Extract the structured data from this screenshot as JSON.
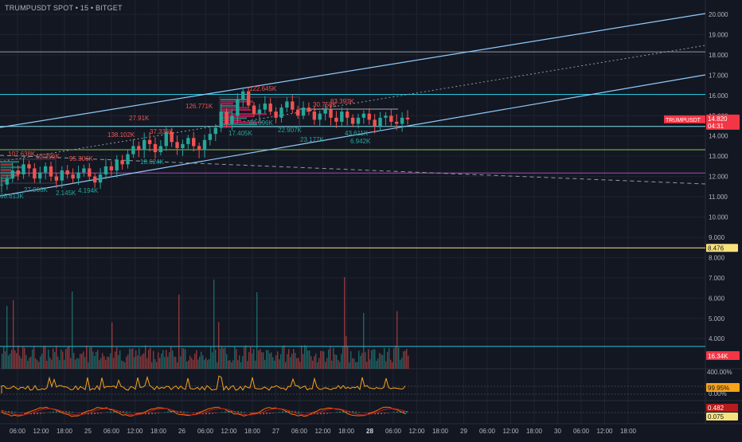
{
  "header": {
    "symbol": "TRUMPUSDT SPOT",
    "sep1": "•",
    "interval": "15",
    "sep2": "•",
    "exchange": "BITGET"
  },
  "price_axis": {
    "ticks": [
      "20.000",
      "19.000",
      "18.000",
      "17.000",
      "16.000",
      "15.000",
      "14.000",
      "13.000",
      "12.000",
      "11.000",
      "10.000",
      "9.000",
      "8.000",
      "7.000",
      "6.000",
      "5.000",
      "4.000"
    ],
    "last_price_tag": {
      "label": "TRUMPUSDT",
      "value": "14.820",
      "countdown": "04:31",
      "color": "#f23645"
    },
    "line_tag": {
      "value": "8.476",
      "color": "#f7e27c"
    }
  },
  "volume_panel": {
    "tag": "16.34K",
    "tag_color": "#f23645"
  },
  "oscillator_panel": {
    "ticks": [
      "400.00%",
      "0.00%"
    ],
    "tag": "99.95%",
    "tag_color": "#f7a21b"
  },
  "macd_panel": {
    "tag1": "0.482",
    "tag1_color": "#b71c1c",
    "tag2": "0.075",
    "tag2_color": "#f7e27c"
  },
  "time_axis": {
    "labels": [
      "06:00",
      "12:00",
      "18:00",
      "25",
      "06:00",
      "12:00",
      "18:00",
      "26",
      "06:00",
      "12:00",
      "18:00",
      "27",
      "06:00",
      "12:00",
      "18:00",
      "28",
      "06:00",
      "12:00",
      "18:00",
      "29",
      "06:00",
      "12:00",
      "18:00",
      "30",
      "06:00",
      "12:00",
      "18:00"
    ],
    "bold_label": "28"
  },
  "annotations": [
    {
      "text": "122.645K",
      "color": "#ef5350"
    },
    {
      "text": "126.771K",
      "color": "#ef5350"
    },
    {
      "text": "83.393K",
      "color": "#ef5350"
    },
    {
      "text": "30.758K",
      "color": "#ef5350"
    },
    {
      "text": "27.91K",
      "color": "#ef5350"
    },
    {
      "text": "138.102K",
      "color": "#ef5350"
    },
    {
      "text": "37.336K",
      "color": "#ef5350"
    },
    {
      "text": "107.638K",
      "color": "#ef5350"
    },
    {
      "text": "13.396K",
      "color": "#ef5350"
    },
    {
      "text": "95.306K",
      "color": "#ef5350"
    },
    {
      "text": "17.405K",
      "color": "#26a69a"
    },
    {
      "text": "86.096K",
      "color": "#26a69a"
    },
    {
      "text": "22.907K",
      "color": "#26a69a"
    },
    {
      "text": "43.611K",
      "color": "#26a69a"
    },
    {
      "text": "23.177K",
      "color": "#26a69a"
    },
    {
      "text": "6.942K",
      "color": "#26a69a"
    },
    {
      "text": "18.624K",
      "color": "#26a69a"
    },
    {
      "text": "66.613K",
      "color": "#26a69a"
    },
    {
      "text": "27.906K",
      "color": "#26a69a"
    },
    {
      "text": "2.145K",
      "color": "#26a69a"
    },
    {
      "text": "4.194K",
      "color": "#26a69a"
    }
  ],
  "chart_data": {
    "type": "line",
    "symbol": "TRUMPUSDT",
    "interval": "15",
    "y_range": [
      7.5,
      20.4
    ],
    "close_series": [
      11.6,
      11.9,
      12.3,
      12.1,
      12.6,
      12.4,
      11.9,
      12.2,
      12.5,
      12.0,
      11.8,
      12.3,
      12.1,
      11.9,
      12.2,
      12.4,
      12.0,
      11.7,
      12.1,
      12.5,
      12.3,
      12.8,
      12.6,
      13.1,
      13.5,
      13.3,
      13.8,
      13.6,
      13.2,
      13.5,
      14.2,
      13.7,
      13.4,
      13.6,
      13.9,
      13.5,
      13.3,
      13.8,
      14.1,
      14.4,
      15.2,
      14.6,
      15.0,
      15.8,
      16.2,
      15.5,
      15.1,
      15.3,
      15.6,
      15.2,
      14.9,
      15.4,
      15.7,
      15.3,
      15.0,
      15.4,
      15.2,
      14.8,
      15.1,
      15.3,
      14.9,
      14.7,
      15.2,
      14.9,
      14.6,
      14.9,
      15.1,
      14.8,
      14.5,
      14.9,
      15.0,
      14.7,
      14.6,
      14.9,
      14.82
    ],
    "horizontal_levels": [
      18.15,
      16.05,
      14.47,
      13.32,
      12.17,
      8.476
    ],
    "last_price": 14.82
  }
}
